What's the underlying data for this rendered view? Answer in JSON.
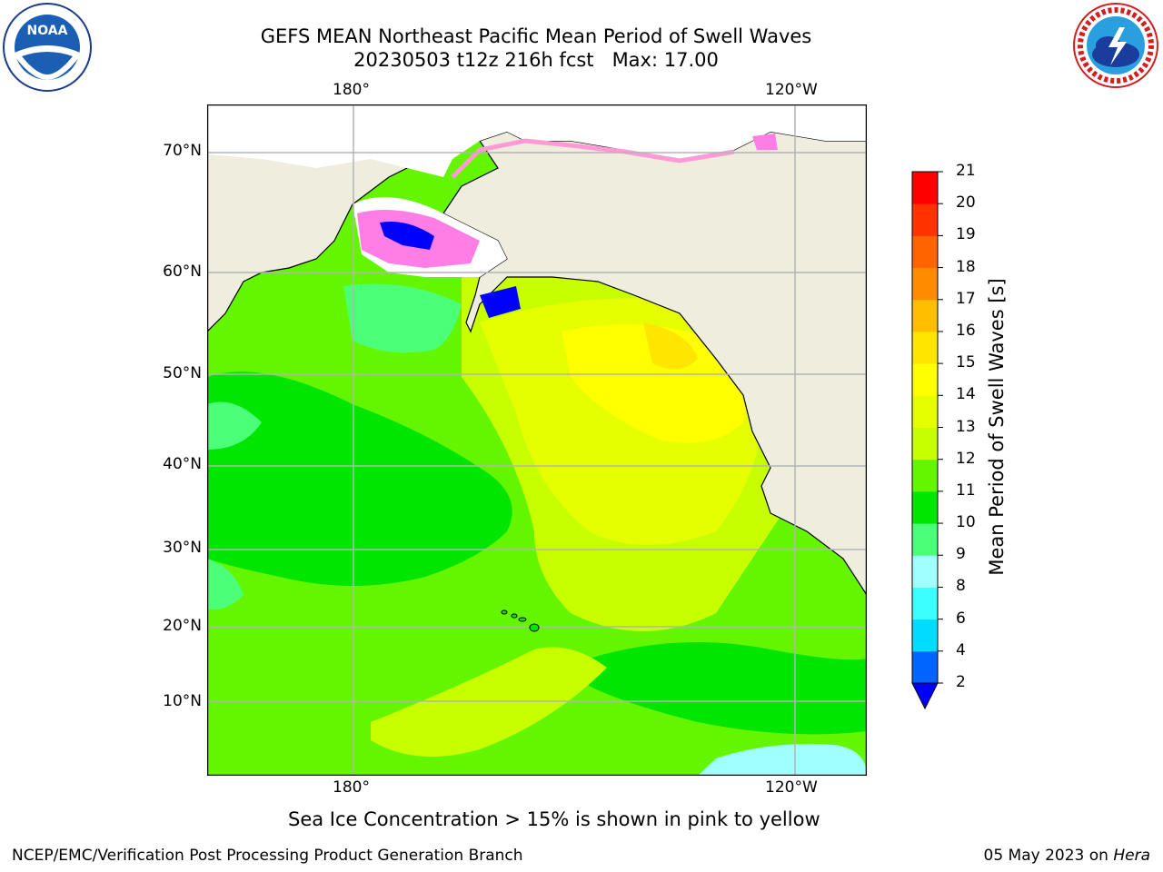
{
  "header": {
    "title_line1": "GEFS MEAN Northeast Pacific Mean Period of Swell Waves",
    "title_line2": "20230503 t12z 216h fcst   Max: 17.00"
  },
  "logos": {
    "left": "NOAA",
    "left_ring_text": "NATIONAL OCEANIC AND ATMOSPHERIC ADMINISTRATION · U.S. DEPARTMENT OF COMMERCE",
    "right_ring_text": "NATIONAL WEATHER SERVICE"
  },
  "map": {
    "lon_labels_top": [
      "180°",
      "120°W"
    ],
    "lon_labels_bottom": [
      "180°",
      "120°W"
    ],
    "lat_labels": [
      "70°N",
      "60°N",
      "50°N",
      "40°N",
      "30°N",
      "20°N",
      "10°N"
    ],
    "colors": {
      "land": "#efedde",
      "grid": "#b4b4b4",
      "ice_pink": "#ff7ee6",
      "ice_magenta": "#ff3cff"
    }
  },
  "colorbar": {
    "title": "Mean Period of Swell Waves [s]",
    "ticks": [
      "2",
      "4",
      "6",
      "8",
      "9",
      "10",
      "11",
      "12",
      "13",
      "14",
      "15",
      "16",
      "17",
      "18",
      "19",
      "20",
      "21"
    ],
    "under_color": "#0000ff",
    "colors": [
      "#0064ff",
      "#00dcff",
      "#3cffff",
      "#a0ffff",
      "#4cff78",
      "#00e600",
      "#64f500",
      "#c8ff00",
      "#e6ff00",
      "#ffff00",
      "#ffe600",
      "#ffbe00",
      "#ff8c00",
      "#ff6400",
      "#ff3200",
      "#ff0000"
    ]
  },
  "footer": {
    "note": "Sea Ice Concentration > 15% is shown in pink to yellow",
    "credit_left": "NCEP/EMC/Verification Post Processing Product Generation Branch",
    "date": "05 May 2023 on ",
    "machine": "Hera"
  }
}
